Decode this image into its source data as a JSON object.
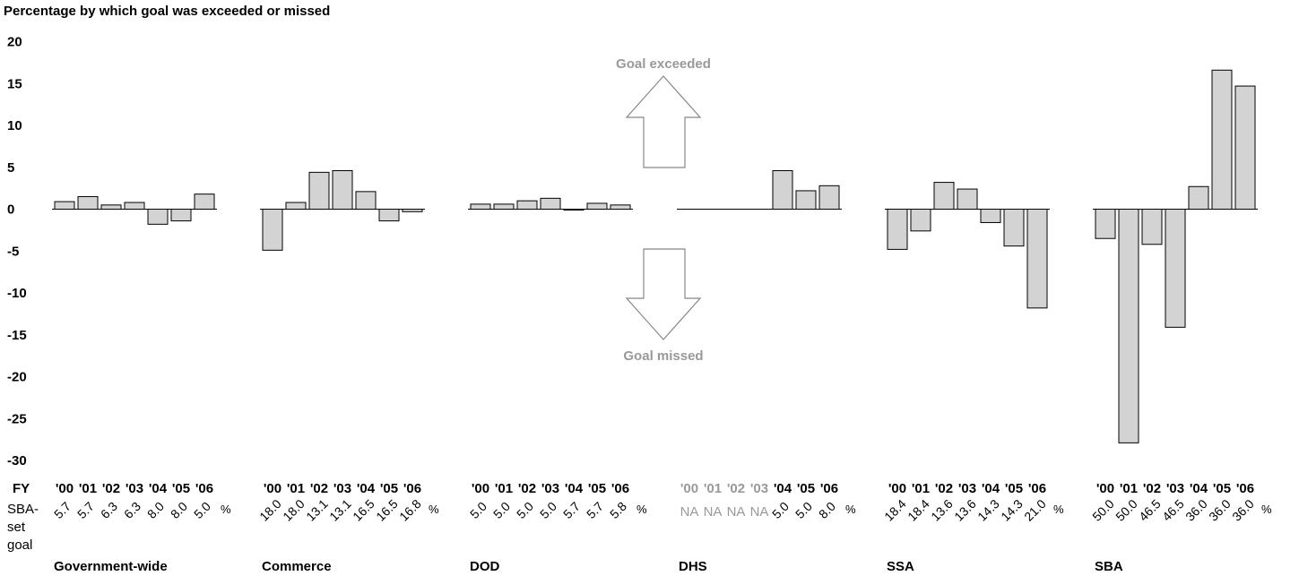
{
  "chart_data": {
    "type": "bar",
    "title": "Percentage by which goal was exceeded or missed",
    "y_ticks": [
      "20",
      "15",
      "10",
      "5",
      "0",
      "-5",
      "-10",
      "-15",
      "-20",
      "-25",
      "-30"
    ],
    "ylim": [
      -30,
      20
    ],
    "fy_label": "FY",
    "goal_label_line1": "SBA-",
    "goal_label_line2": "set",
    "goal_label_line3": "goal",
    "pct_symbol": "%",
    "annotations": {
      "exceeded": "Goal exceeded",
      "missed": "Goal missed"
    },
    "colors": {
      "bar_fill": "#d3d3d3",
      "bar_stroke": "#000000",
      "annotation": "#999999",
      "na_text": "#999999",
      "arrow_stroke": "#888888"
    },
    "groups": [
      {
        "name": "Government-wide",
        "years": [
          "'00",
          "'01",
          "'02",
          "'03",
          "'04",
          "'05",
          "'06"
        ],
        "year_na": [
          false,
          false,
          false,
          false,
          false,
          false,
          false
        ],
        "values": [
          0.9,
          1.5,
          0.5,
          0.8,
          -1.8,
          -1.4,
          1.8
        ],
        "goals": [
          "5.7",
          "5.7",
          "6.3",
          "6.3",
          "8.0",
          "8.0",
          "5.0"
        ],
        "goal_na": [
          false,
          false,
          false,
          false,
          false,
          false,
          false
        ]
      },
      {
        "name": "Commerce",
        "years": [
          "'00",
          "'01",
          "'02",
          "'03",
          "'04",
          "'05",
          "'06"
        ],
        "year_na": [
          false,
          false,
          false,
          false,
          false,
          false,
          false
        ],
        "values": [
          -4.9,
          0.8,
          4.4,
          4.6,
          2.1,
          -1.4,
          -0.3
        ],
        "goals": [
          "18.0",
          "18.0",
          "13.1",
          "13.1",
          "16.5",
          "16.5",
          "16.8"
        ],
        "goal_na": [
          false,
          false,
          false,
          false,
          false,
          false,
          false
        ]
      },
      {
        "name": "DOD",
        "years": [
          "'00",
          "'01",
          "'02",
          "'03",
          "'04",
          "'05",
          "'06"
        ],
        "year_na": [
          false,
          false,
          false,
          false,
          false,
          false,
          false
        ],
        "values": [
          0.6,
          0.6,
          1.0,
          1.3,
          0.0,
          0.7,
          0.5
        ],
        "goals": [
          "5.0",
          "5.0",
          "5.0",
          "5.0",
          "5.7",
          "5.7",
          "5.8"
        ],
        "goal_na": [
          false,
          false,
          false,
          false,
          false,
          false,
          false
        ]
      },
      {
        "name": "DHS",
        "years": [
          "'00",
          "'01",
          "'02",
          "'03",
          "'04",
          "'05",
          "'06"
        ],
        "year_na": [
          true,
          true,
          true,
          true,
          false,
          false,
          false
        ],
        "values": [
          0,
          0,
          0,
          0,
          4.6,
          2.2,
          2.8
        ],
        "goals": [
          "NA",
          "NA",
          "NA",
          "NA",
          "5.0",
          "5.0",
          "8.0"
        ],
        "goal_na": [
          true,
          true,
          true,
          true,
          false,
          false,
          false
        ]
      },
      {
        "name": "SSA",
        "years": [
          "'00",
          "'01",
          "'02",
          "'03",
          "'04",
          "'05",
          "'06"
        ],
        "year_na": [
          false,
          false,
          false,
          false,
          false,
          false,
          false
        ],
        "values": [
          -4.8,
          -2.6,
          3.2,
          2.4,
          -1.6,
          -4.4,
          -11.8
        ],
        "goals": [
          "18.4",
          "18.4",
          "13.6",
          "13.6",
          "14.3",
          "14.3",
          "21.0"
        ],
        "goal_na": [
          false,
          false,
          false,
          false,
          false,
          false,
          false
        ]
      },
      {
        "name": "SBA",
        "years": [
          "'00",
          "'01",
          "'02",
          "'03",
          "'04",
          "'05",
          "'06"
        ],
        "year_na": [
          false,
          false,
          false,
          false,
          false,
          false,
          false
        ],
        "values": [
          -3.5,
          -27.9,
          -4.2,
          -14.1,
          2.7,
          16.6,
          14.7
        ],
        "goals": [
          "50.0",
          "50.0",
          "46.5",
          "46.5",
          "36.0",
          "36.0",
          "36.0"
        ],
        "goal_na": [
          false,
          false,
          false,
          false,
          false,
          false,
          false
        ]
      }
    ]
  }
}
